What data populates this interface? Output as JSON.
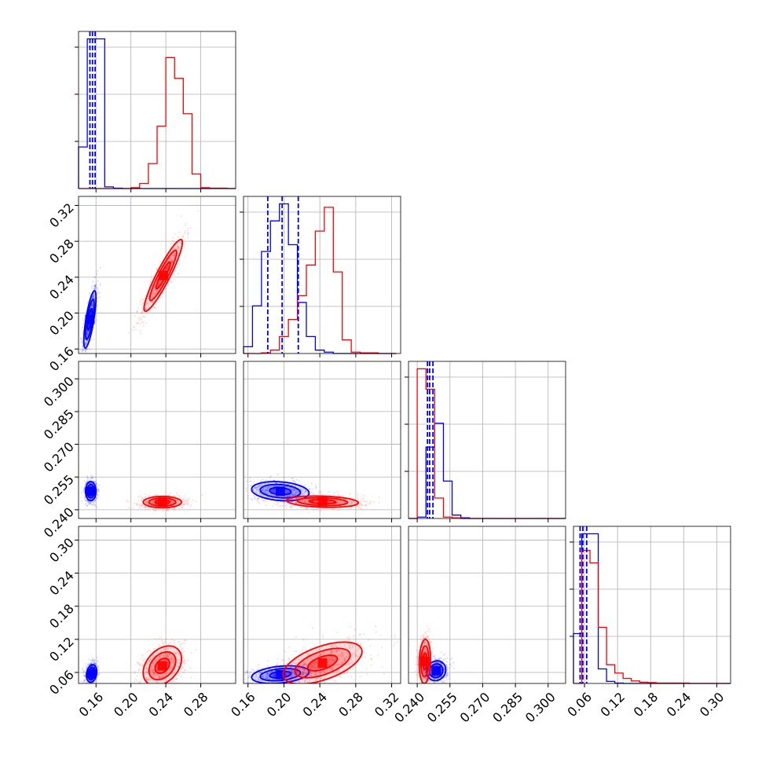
{
  "chart_data": {
    "type": "corner",
    "grid": true,
    "series": [
      {
        "name": "",
        "color": "#0000ff"
      },
      {
        "name": "",
        "color": "#ff0000"
      }
    ],
    "params": [
      {
        "range": [
          0.14,
          0.32
        ],
        "ticks": [
          "0.16",
          "0.20",
          "0.24",
          "0.28"
        ]
      },
      {
        "range": [
          0.155,
          0.33
        ],
        "ticks": [
          "0.16",
          "0.20",
          "0.24",
          "0.28",
          "0.32"
        ]
      },
      {
        "range": [
          0.236,
          0.308
        ],
        "ticks": [
          "0.240",
          "0.255",
          "0.270",
          "0.285",
          "0.300"
        ]
      },
      {
        "range": [
          0.04,
          0.325
        ],
        "ticks": [
          "0.06",
          "0.12",
          "0.18",
          "0.24",
          "0.30"
        ]
      }
    ],
    "diagonal_histograms": [
      {
        "bin_edges": [
          0.14,
          0.15,
          0.16,
          0.17,
          0.18,
          0.19,
          0.2,
          0.21,
          0.22,
          0.23,
          0.24,
          0.25,
          0.26,
          0.27,
          0.28,
          0.29,
          0.3,
          0.31,
          0.32
        ],
        "series": [
          {
            "values": [
              1.0,
              3.6,
              3.6,
              0.04,
              0.01,
              0,
              0,
              0,
              0,
              0,
              0,
              0,
              0,
              0,
              0,
              0,
              0,
              0
            ]
          },
          {
            "values": [
              0,
              0,
              0,
              0,
              0,
              0,
              0.02,
              0.12,
              0.6,
              1.5,
              3.15,
              2.65,
              1.8,
              0.35,
              0.02,
              0.01,
              0.01,
              0
            ]
          }
        ],
        "quantile_lines": [
          0.153,
          0.156,
          0.159
        ]
      },
      {
        "bin_edges": [
          0.155,
          0.165,
          0.175,
          0.185,
          0.195,
          0.205,
          0.215,
          0.225,
          0.235,
          0.245,
          0.255,
          0.265,
          0.275,
          0.285,
          0.295,
          0.305,
          0.315,
          0.325
        ],
        "series": [
          {
            "values": [
              0.1,
              0.7,
              1.5,
              1.95,
              2.2,
              1.6,
              0.75,
              0.25,
              0.05,
              0.02,
              0,
              0,
              0,
              0,
              0,
              0,
              0
            ]
          },
          {
            "values": [
              0,
              0,
              0.01,
              0.05,
              0.25,
              0.5,
              0.85,
              1.3,
              1.8,
              2.15,
              1.2,
              0.2,
              0.02,
              0.01,
              0.01,
              0,
              0
            ]
          }
        ],
        "quantile_lines": [
          0.182,
          0.198,
          0.216
        ]
      },
      {
        "bin_edges": [
          0.236,
          0.24,
          0.244,
          0.248,
          0.252,
          0.256,
          0.26,
          0.264,
          0.268,
          0.272,
          0.276,
          0.28,
          0.284,
          0.288,
          0.292,
          0.296,
          0.3,
          0.304,
          0.308
        ],
        "series": [
          {
            "values": [
              0,
              0.02,
              1.05,
              1.4,
              0.55,
              0.05,
              0.01,
              0,
              0,
              0,
              0,
              0,
              0,
              0,
              0,
              0,
              0,
              0
            ]
          },
          {
            "values": [
              0,
              2.2,
              1.9,
              0.3,
              0.02,
              0.01,
              0,
              0,
              0,
              0,
              0,
              0,
              0,
              0,
              0,
              0,
              0,
              0
            ]
          }
        ],
        "quantile_lines": [
          0.2447,
          0.2457,
          0.2472
        ]
      },
      {
        "bin_edges": [
          0.04,
          0.055,
          0.07,
          0.085,
          0.1,
          0.115,
          0.13,
          0.145,
          0.16,
          0.175,
          0.19,
          0.205,
          0.22,
          0.235,
          0.25,
          0.265,
          0.28,
          0.295,
          0.31,
          0.325
        ],
        "series": [
          {
            "values": [
              1.2,
              3.6,
              3.6,
              0.35,
              0.05,
              0.01,
              0,
              0,
              0,
              0,
              0,
              0,
              0,
              0,
              0,
              0,
              0,
              0,
              0
            ]
          },
          {
            "values": [
              0,
              3.2,
              2.9,
              1.35,
              0.45,
              0.25,
              0.12,
              0.06,
              0.03,
              0.02,
              0.01,
              0.01,
              0.01,
              0.01,
              0,
              0,
              0,
              0,
              0
            ]
          }
        ],
        "quantile_lines": [
          0.052,
          0.057,
          0.064
        ]
      }
    ],
    "joint_distributions": [
      {
        "x_param": 0,
        "y_param": 1,
        "series": [
          {
            "center": [
              0.153,
              0.193
            ],
            "sd": [
              0.0035,
              0.016
            ],
            "corr": 0.75
          },
          {
            "center": [
              0.237,
              0.242
            ],
            "sd": [
              0.011,
              0.02
            ],
            "corr": 0.92
          }
        ]
      },
      {
        "x_param": 0,
        "y_param": 2,
        "series": [
          {
            "center": [
              0.154,
              0.2485
            ],
            "sd": [
              0.003,
              0.0022
            ],
            "corr": 0.0
          },
          {
            "center": [
              0.236,
              0.2435
            ],
            "sd": [
              0.011,
              0.0013
            ],
            "corr": 0.0
          }
        ]
      },
      {
        "x_param": 0,
        "y_param": 3,
        "series": [
          {
            "center": [
              0.155,
              0.058
            ],
            "sd": [
              0.003,
              0.008
            ],
            "corr": 0.2
          },
          {
            "center": [
              0.236,
              0.072
            ],
            "sd": [
              0.011,
              0.018
            ],
            "corr": 0.35
          }
        ]
      },
      {
        "x_param": 1,
        "y_param": 2,
        "series": [
          {
            "center": [
              0.196,
              0.2485
            ],
            "sd": [
              0.016,
              0.0022
            ],
            "corr": -0.2
          },
          {
            "center": [
              0.243,
              0.2437
            ],
            "sd": [
              0.02,
              0.0013
            ],
            "corr": -0.2
          }
        ]
      },
      {
        "x_param": 1,
        "y_param": 3,
        "series": [
          {
            "center": [
              0.196,
              0.056
            ],
            "sd": [
              0.016,
              0.008
            ],
            "corr": 0.3
          },
          {
            "center": [
              0.243,
              0.077
            ],
            "sd": [
              0.022,
              0.019
            ],
            "corr": 0.55
          }
        ]
      },
      {
        "x_param": 2,
        "y_param": 3,
        "series": [
          {
            "center": [
              0.2487,
              0.063
            ],
            "sd": [
              0.0022,
              0.009
            ],
            "corr": 0.1
          },
          {
            "center": [
              0.2435,
              0.08
            ],
            "sd": [
              0.0013,
              0.02
            ],
            "corr": 0.1
          }
        ]
      }
    ]
  }
}
